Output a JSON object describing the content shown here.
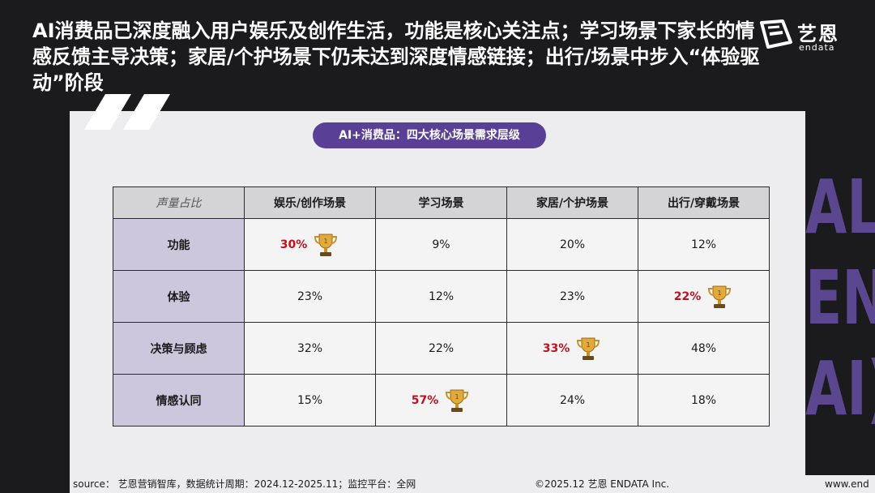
{
  "headline": "AI消费品已深度融入用户娱乐及创作生活，功能是核心关注点；学习场景下家长的情感反馈主导决策；家居/个护场景下仍未达到深度情感链接；出行/场景中步入“体验驱动”阶段",
  "brand": {
    "cn": "艺恩",
    "en": "endata"
  },
  "bg_letters": [
    "AL",
    "EN",
    "AI)"
  ],
  "pill_title": "AI+消费品：四大核心场景需求层级",
  "table": {
    "corner": "声量占比",
    "columns": [
      "娱乐/创作场景",
      "学习场景",
      "家居/个护场景",
      "出行/穿戴场景"
    ],
    "rows": [
      {
        "label": "功能",
        "cells": [
          {
            "value": "30%",
            "highlight": true
          },
          {
            "value": "9%",
            "highlight": false
          },
          {
            "value": "20%",
            "highlight": false
          },
          {
            "value": "12%",
            "highlight": false
          }
        ]
      },
      {
        "label": "体验",
        "cells": [
          {
            "value": "23%",
            "highlight": false
          },
          {
            "value": "12%",
            "highlight": false
          },
          {
            "value": "23%",
            "highlight": false
          },
          {
            "value": "22%",
            "highlight": true
          }
        ]
      },
      {
        "label": "决策与顾虑",
        "cells": [
          {
            "value": "32%",
            "highlight": false
          },
          {
            "value": "22%",
            "highlight": false
          },
          {
            "value": "33%",
            "highlight": true
          },
          {
            "value": "48%",
            "highlight": false
          }
        ]
      },
      {
        "label": "情感认同",
        "cells": [
          {
            "value": "15%",
            "highlight": false
          },
          {
            "value": "57%",
            "highlight": true
          },
          {
            "value": "24%",
            "highlight": false
          },
          {
            "value": "18%",
            "highlight": false
          }
        ]
      }
    ]
  },
  "footer": {
    "source": "source： 艺恩营销智库，数据统计周期：2024.12-2025.11；监控平台：全网",
    "copyright": "©2025.12  艺恩 ENDATA Inc.",
    "url": "www.end"
  },
  "colors": {
    "background": "#1b1a1c",
    "panel": "#ededef",
    "accent_purple": "#5a3f96",
    "row_header": "#cdc7dd",
    "highlight_red": "#c0121f",
    "trophy_gold": "#e2a93b"
  },
  "icons": {
    "trophy": "trophy-icon",
    "quote": "quote-mark-icon",
    "logo": "endata-logo-icon"
  }
}
